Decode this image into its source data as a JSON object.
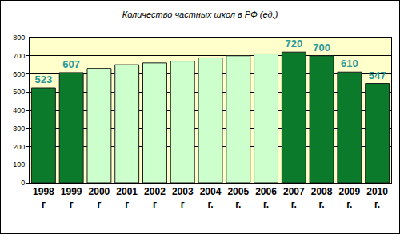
{
  "chart_data": {
    "type": "bar",
    "title": "Количество частных школ в РФ (ед.)",
    "categories": [
      "1998 г",
      "1999 г",
      "2000 г",
      "2001 г",
      "2002 г",
      "2003 г",
      "2004 г.",
      "2005 г.",
      "2006 г.",
      "2007 г.",
      "2008 г.",
      "2009 г.",
      "2010 г."
    ],
    "values": [
      523,
      607,
      630,
      650,
      660,
      670,
      688,
      700,
      710,
      720,
      700,
      610,
      547
    ],
    "value_labels": [
      "523",
      "607",
      null,
      null,
      null,
      null,
      null,
      null,
      null,
      "720",
      "700",
      "610",
      "547"
    ],
    "colors": [
      "#0b7a2a",
      "#0b7a2a",
      "#ccffcc",
      "#ccffcc",
      "#ccffcc",
      "#ccffcc",
      "#ccffcc",
      "#ccffcc",
      "#ccffcc",
      "#0b7a2a",
      "#0b7a2a",
      "#0b7a2a",
      "#0b7a2a"
    ],
    "ylim": [
      0,
      800
    ],
    "yticks": [
      0,
      100,
      200,
      300,
      400,
      500,
      600,
      700,
      800
    ],
    "grid": true,
    "data_labels": true
  }
}
